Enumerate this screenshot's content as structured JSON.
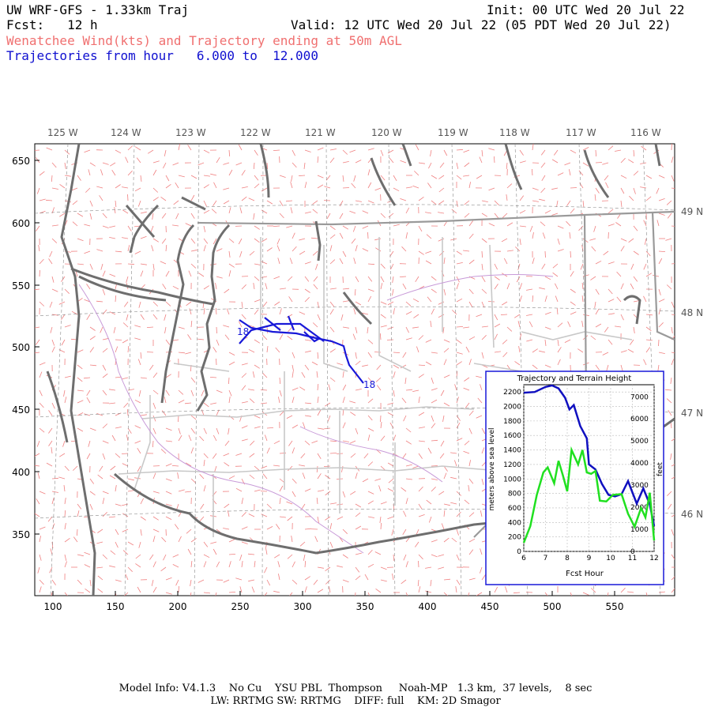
{
  "header": {
    "model_title": "UW WRF-GFS - 1.33km Traj",
    "init": "Init: 00 UTC Wed 20 Jul 22",
    "fcst": "Fcst:   12 h",
    "valid": "Valid: 12 UTC Wed 20 Jul 22 (05 PDT Wed 20 Jul 22)",
    "field": "Wenatchee Wind(kts) and Trajectory ending at 50m AGL",
    "traj_range": "Trajectories from hour   6.000 to  12.000"
  },
  "map": {
    "top_lon_labels": [
      "125 W",
      "124 W",
      "123 W",
      "122 W",
      "121 W",
      "120 W",
      "119 W",
      "118 W",
      "117 W",
      "116 W"
    ],
    "right_lat_labels": [
      "49 N",
      "48 N",
      "47 N",
      "46 N"
    ],
    "x_ticks": [
      "100",
      "150",
      "200",
      "250",
      "300",
      "350",
      "400",
      "450",
      "500",
      "550"
    ],
    "y_ticks": [
      "650",
      "600",
      "550",
      "500",
      "450",
      "400",
      "350"
    ],
    "trajectory_start_labels": [
      "18",
      "18"
    ],
    "colors": {
      "coast": "#6e6e6e",
      "border": "#999999",
      "state": "#b0b0b0",
      "county": "#c8a0d0",
      "wind": "#f08080",
      "trajectory": "#1818d8"
    }
  },
  "inset": {
    "title": "Trajectory and Terrain Height",
    "ylabel_left": "meters above sea level",
    "ylabel_right": "feet",
    "xlabel": "Fcst Hour",
    "left_ticks": [
      "0",
      "200",
      "400",
      "600",
      "800",
      "1000",
      "1200",
      "1400",
      "1600",
      "1800",
      "2000",
      "2200"
    ],
    "right_ticks": [
      "0",
      "1000",
      "2000",
      "3000",
      "4000",
      "5000",
      "6000",
      "7000"
    ],
    "x_ticks": [
      "6",
      "7",
      "8",
      "9",
      "10",
      "11",
      "12"
    ]
  },
  "chart_data": {
    "type": "line",
    "title": "Trajectory and Terrain Height",
    "xlabel": "Fcst Hour",
    "ylabel": "meters above sea level",
    "xlim": [
      6,
      12
    ],
    "ylim": [
      0,
      2300
    ],
    "series": [
      {
        "name": "",
        "color": "#1010c0",
        "x": [
          6.0,
          6.5,
          7.0,
          7.3,
          7.6,
          7.9,
          8.1,
          8.3,
          8.6,
          8.9,
          9.0,
          9.3,
          9.6,
          9.9,
          10.2,
          10.5,
          10.8,
          11.2,
          11.5,
          11.8,
          12.0
        ],
        "y": [
          2190,
          2200,
          2270,
          2290,
          2250,
          2120,
          1960,
          2020,
          1730,
          1560,
          1200,
          1130,
          930,
          780,
          760,
          790,
          970,
          660,
          870,
          650,
          350
        ]
      },
      {
        "name": "",
        "color": "#20e020",
        "x": [
          6.0,
          6.3,
          6.6,
          6.9,
          7.1,
          7.4,
          7.6,
          7.8,
          8.0,
          8.2,
          8.5,
          8.7,
          8.9,
          9.1,
          9.3,
          9.5,
          9.8,
          10.1,
          10.5,
          10.8,
          11.1,
          11.4,
          11.6,
          11.8,
          12.0
        ],
        "y": [
          120,
          350,
          780,
          1090,
          1160,
          940,
          1250,
          1050,
          830,
          1400,
          1200,
          1400,
          1090,
          1070,
          1110,
          700,
          690,
          780,
          790,
          520,
          340,
          600,
          470,
          810,
          150
        ]
      }
    ]
  }
}
